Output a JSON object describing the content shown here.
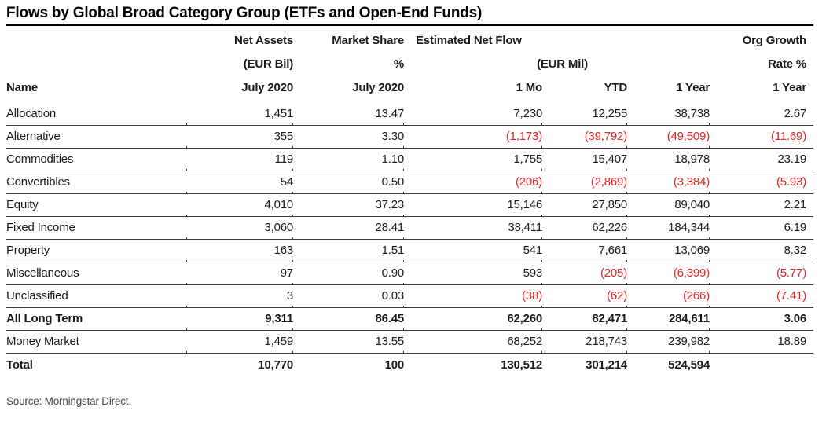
{
  "title": "Flows by Global Broad Category Group (ETFs and Open-End Funds)",
  "source_note": "Source: Morningstar Direct.",
  "colors": {
    "negative": "#dd2626",
    "title_rule": "#000000",
    "row_line": "#3c3c3c",
    "text": "#1a1a1a"
  },
  "table": {
    "header": {
      "name": "Name",
      "net_assets": {
        "line1": "Net Assets",
        "line2": "(EUR Bil)",
        "line3": "July 2020"
      },
      "market_share": {
        "line1": "Market Share",
        "line2": "%",
        "line3": "July 2020"
      },
      "net_flow": {
        "group": "Estimated Net Flow",
        "unit": "(EUR Mil)",
        "col_1mo": "1 Mo",
        "col_ytd": "YTD",
        "col_1yr": "1 Year"
      },
      "org_growth": {
        "line1": "Org Growth",
        "line2": "Rate %",
        "line3": "1 Year"
      }
    },
    "rows": [
      {
        "name": "Allocation",
        "values": [
          "1,451",
          "13.47",
          "7,230",
          "12,255",
          "38,738",
          "2.67"
        ],
        "bold": false
      },
      {
        "name": "Alternative",
        "values": [
          "355",
          "3.30",
          "(1,173)",
          "(39,792)",
          "(49,509)",
          "(11.69)"
        ],
        "bold": false
      },
      {
        "name": "Commodities",
        "values": [
          "119",
          "1.10",
          "1,755",
          "15,407",
          "18,978",
          "23.19"
        ],
        "bold": false
      },
      {
        "name": "Convertibles",
        "values": [
          "54",
          "0.50",
          "(206)",
          "(2,869)",
          "(3,384)",
          "(5.93)"
        ],
        "bold": false
      },
      {
        "name": "Equity",
        "values": [
          "4,010",
          "37.23",
          "15,146",
          "27,850",
          "89,040",
          "2.21"
        ],
        "bold": false
      },
      {
        "name": "Fixed Income",
        "values": [
          "3,060",
          "28.41",
          "38,411",
          "62,226",
          "184,344",
          "6.19"
        ],
        "bold": false
      },
      {
        "name": "Property",
        "values": [
          "163",
          "1.51",
          "541",
          "7,661",
          "13,069",
          "8.32"
        ],
        "bold": false
      },
      {
        "name": "Miscellaneous",
        "values": [
          "97",
          "0.90",
          "593",
          "(205)",
          "(6,399)",
          "(5.77)"
        ],
        "bold": false
      },
      {
        "name": "Unclassified",
        "values": [
          "3",
          "0.03",
          "(38)",
          "(62)",
          "(266)",
          "(7.41)"
        ],
        "bold": false
      },
      {
        "name": "All Long Term",
        "values": [
          "9,311",
          "86.45",
          "62,260",
          "82,471",
          "284,611",
          "3.06"
        ],
        "bold": true
      },
      {
        "name": "Money Market",
        "values": [
          "1,459",
          "13.55",
          "68,252",
          "218,743",
          "239,982",
          "18.89"
        ],
        "bold": false
      },
      {
        "name": "Total",
        "values": [
          "10,770",
          "100",
          "130,512",
          "301,214",
          "524,594",
          ""
        ],
        "bold": true
      }
    ]
  }
}
